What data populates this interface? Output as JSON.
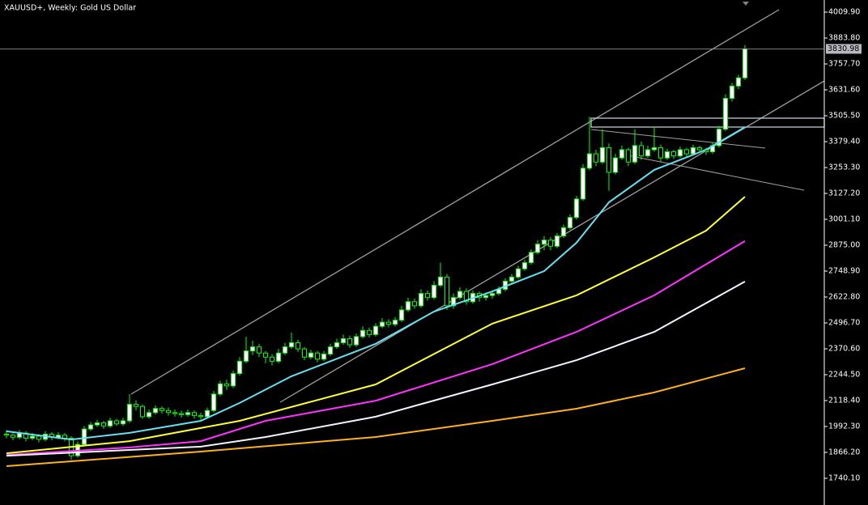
{
  "chart_data": {
    "type": "candlestick",
    "title": "XAUUSD+, Weekly:  Gold US Dollar",
    "ohlc": [
      [
        1955,
        1975,
        1935,
        1950
      ],
      [
        1950,
        1960,
        1925,
        1940
      ],
      [
        1940,
        1975,
        1930,
        1960
      ],
      [
        1960,
        1970,
        1920,
        1935
      ],
      [
        1935,
        1960,
        1925,
        1945
      ],
      [
        1945,
        1955,
        1915,
        1930
      ],
      [
        1930,
        1970,
        1920,
        1955
      ],
      [
        1955,
        1965,
        1925,
        1940
      ],
      [
        1940,
        1965,
        1930,
        1950
      ],
      [
        1950,
        1960,
        1920,
        1935
      ],
      [
        1935,
        1945,
        1830,
        1850
      ],
      [
        1850,
        1920,
        1840,
        1905
      ],
      [
        1905,
        1995,
        1895,
        1980
      ],
      [
        1980,
        2015,
        1970,
        2000
      ],
      [
        2000,
        2025,
        1990,
        2010
      ],
      [
        2010,
        2020,
        1980,
        1995
      ],
      [
        1995,
        2035,
        1985,
        2020
      ],
      [
        2020,
        2030,
        1995,
        2005
      ],
      [
        2005,
        2035,
        1995,
        2020
      ],
      [
        2020,
        2150,
        2010,
        2100
      ],
      [
        2100,
        2120,
        2070,
        2090
      ],
      [
        2090,
        2100,
        2030,
        2040
      ],
      [
        2040,
        2075,
        2030,
        2060
      ],
      [
        2060,
        2095,
        2050,
        2080
      ],
      [
        2080,
        2090,
        2055,
        2070
      ],
      [
        2070,
        2085,
        2045,
        2060
      ],
      [
        2060,
        2075,
        2040,
        2055
      ],
      [
        2055,
        2070,
        2035,
        2050
      ],
      [
        2050,
        2075,
        2040,
        2060
      ],
      [
        2060,
        2070,
        2030,
        2045
      ],
      [
        2045,
        2060,
        2025,
        2040
      ],
      [
        2040,
        2085,
        2030,
        2070
      ],
      [
        2070,
        2165,
        2060,
        2150
      ],
      [
        2150,
        2215,
        2140,
        2200
      ],
      [
        2200,
        2220,
        2170,
        2190
      ],
      [
        2190,
        2265,
        2180,
        2250
      ],
      [
        2250,
        2330,
        2240,
        2310
      ],
      [
        2310,
        2430,
        2300,
        2360
      ],
      [
        2360,
        2410,
        2340,
        2380
      ],
      [
        2380,
        2395,
        2330,
        2350
      ],
      [
        2350,
        2360,
        2300,
        2330
      ],
      [
        2330,
        2345,
        2290,
        2310
      ],
      [
        2310,
        2370,
        2300,
        2350
      ],
      [
        2350,
        2400,
        2340,
        2380
      ],
      [
        2380,
        2450,
        2370,
        2400
      ],
      [
        2400,
        2415,
        2355,
        2370
      ],
      [
        2370,
        2380,
        2315,
        2330
      ],
      [
        2330,
        2365,
        2320,
        2350
      ],
      [
        2350,
        2360,
        2305,
        2320
      ],
      [
        2320,
        2360,
        2310,
        2345
      ],
      [
        2345,
        2395,
        2335,
        2380
      ],
      [
        2380,
        2420,
        2370,
        2400
      ],
      [
        2400,
        2440,
        2390,
        2420
      ],
      [
        2420,
        2435,
        2375,
        2390
      ],
      [
        2390,
        2445,
        2380,
        2430
      ],
      [
        2430,
        2480,
        2420,
        2460
      ],
      [
        2460,
        2475,
        2425,
        2440
      ],
      [
        2440,
        2495,
        2430,
        2480
      ],
      [
        2480,
        2520,
        2470,
        2500
      ],
      [
        2500,
        2515,
        2475,
        2490
      ],
      [
        2490,
        2525,
        2480,
        2510
      ],
      [
        2510,
        2580,
        2500,
        2560
      ],
      [
        2560,
        2620,
        2550,
        2600
      ],
      [
        2600,
        2615,
        2565,
        2580
      ],
      [
        2580,
        2660,
        2570,
        2640
      ],
      [
        2640,
        2655,
        2605,
        2620
      ],
      [
        2620,
        2700,
        2610,
        2680
      ],
      [
        2680,
        2790,
        2670,
        2720
      ],
      [
        2720,
        2735,
        2560,
        2580
      ],
      [
        2580,
        2640,
        2565,
        2620
      ],
      [
        2620,
        2670,
        2610,
        2650
      ],
      [
        2650,
        2665,
        2585,
        2600
      ],
      [
        2600,
        2655,
        2590,
        2640
      ],
      [
        2640,
        2650,
        2600,
        2620
      ],
      [
        2620,
        2645,
        2605,
        2630
      ],
      [
        2630,
        2655,
        2615,
        2640
      ],
      [
        2640,
        2675,
        2630,
        2660
      ],
      [
        2660,
        2715,
        2650,
        2700
      ],
      [
        2700,
        2735,
        2690,
        2720
      ],
      [
        2720,
        2775,
        2710,
        2760
      ],
      [
        2760,
        2805,
        2750,
        2790
      ],
      [
        2790,
        2855,
        2780,
        2840
      ],
      [
        2840,
        2900,
        2830,
        2880
      ],
      [
        2880,
        2920,
        2850,
        2900
      ],
      [
        2900,
        2915,
        2850,
        2870
      ],
      [
        2870,
        2935,
        2860,
        2920
      ],
      [
        2920,
        2975,
        2910,
        2960
      ],
      [
        2960,
        3025,
        2950,
        3010
      ],
      [
        3010,
        3115,
        3000,
        3100
      ],
      [
        3100,
        3270,
        3090,
        3250
      ],
      [
        3250,
        3500,
        3240,
        3320
      ],
      [
        3320,
        3340,
        3260,
        3280
      ],
      [
        3280,
        3440,
        3270,
        3350
      ],
      [
        3350,
        3370,
        3140,
        3230
      ],
      [
        3230,
        3320,
        3220,
        3300
      ],
      [
        3300,
        3360,
        3290,
        3340
      ],
      [
        3340,
        3350,
        3260,
        3280
      ],
      [
        3280,
        3440,
        3270,
        3360
      ],
      [
        3360,
        3380,
        3290,
        3310
      ],
      [
        3310,
        3360,
        3300,
        3340
      ],
      [
        3340,
        3450,
        3330,
        3350
      ],
      [
        3350,
        3365,
        3280,
        3300
      ],
      [
        3300,
        3345,
        3290,
        3330
      ],
      [
        3330,
        3340,
        3295,
        3310
      ],
      [
        3310,
        3355,
        3300,
        3340
      ],
      [
        3340,
        3350,
        3305,
        3320
      ],
      [
        3320,
        3365,
        3310,
        3350
      ],
      [
        3350,
        3360,
        3325,
        3340
      ],
      [
        3340,
        3350,
        3315,
        3330
      ],
      [
        3330,
        3375,
        3320,
        3360
      ],
      [
        3360,
        3455,
        3350,
        3440
      ],
      [
        3440,
        3610,
        3430,
        3590
      ],
      [
        3590,
        3665,
        3575,
        3650
      ],
      [
        3650,
        3705,
        3635,
        3690
      ],
      [
        3690,
        3850,
        3680,
        3830.98
      ]
    ],
    "bull_color": "#ffffff",
    "bear_color": "#000000",
    "wick_color": "#00ff00",
    "series": [
      {
        "color": "#66e0f0",
        "x": [
          0,
          10,
          19,
          30,
          36,
          44,
          57,
          66,
          75,
          83,
          88,
          93,
          100,
          108,
          114
        ],
        "values": [
          1969,
          1929,
          1961,
          2020,
          2107,
          2237,
          2395,
          2552,
          2650,
          2749,
          2887,
          3084,
          3242,
          3340,
          3450
        ]
      },
      {
        "color": "#ffff33",
        "x": [
          0,
          19,
          36,
          57,
          75,
          88,
          100,
          108,
          114
        ],
        "values": [
          1862,
          1921,
          2020,
          2197,
          2493,
          2631,
          2816,
          2946,
          3111
        ]
      },
      {
        "color": "#ff33ff",
        "x": [
          0,
          19,
          30,
          40,
          57,
          75,
          88,
          100,
          114
        ],
        "values": [
          1854,
          1890,
          1921,
          2020,
          2118,
          2296,
          2453,
          2631,
          2895
        ]
      },
      {
        "color": "#f4f4ff",
        "x": [
          0,
          30,
          40,
          57,
          75,
          88,
          100,
          114
        ],
        "values": [
          1850,
          1894,
          1941,
          2040,
          2197,
          2315,
          2453,
          2698
        ]
      },
      {
        "color": "#ffb020",
        "x": [
          0,
          30,
          57,
          75,
          88,
          100,
          114
        ],
        "values": [
          1799,
          1870,
          1941,
          2020,
          2079,
          2158,
          2276
        ]
      }
    ],
    "current_price": 3830.98,
    "ylim": [
      1610,
      4069
    ],
    "yticks": [
      {
        "value": 4009.9,
        "label": "4009.90"
      },
      {
        "value": 3883.8,
        "label": "3883.80"
      },
      {
        "value": 3757.7,
        "label": "3757.70"
      },
      {
        "value": 3631.6,
        "label": "3631.60"
      },
      {
        "value": 3505.5,
        "label": "3505.50"
      },
      {
        "value": 3379.4,
        "label": "3379.40"
      },
      {
        "value": 3253.3,
        "label": "3253.30"
      },
      {
        "value": 3127.2,
        "label": "3127.20"
      },
      {
        "value": 3001.1,
        "label": "3001.10"
      },
      {
        "value": 2875,
        "label": "2875.00"
      },
      {
        "value": 2748.9,
        "label": "2748.90"
      },
      {
        "value": 2622.8,
        "label": "2622.80"
      },
      {
        "value": 2496.7,
        "label": "2496.70"
      },
      {
        "value": 2370.6,
        "label": "2370.60"
      },
      {
        "value": 2244.5,
        "label": "2244.50"
      },
      {
        "value": 2118.4,
        "label": "2118.40"
      },
      {
        "value": 1992.3,
        "label": "1992.30"
      },
      {
        "value": 1866.2,
        "label": "1866.20"
      },
      {
        "value": 1740.1,
        "label": "1740.10"
      }
    ]
  }
}
